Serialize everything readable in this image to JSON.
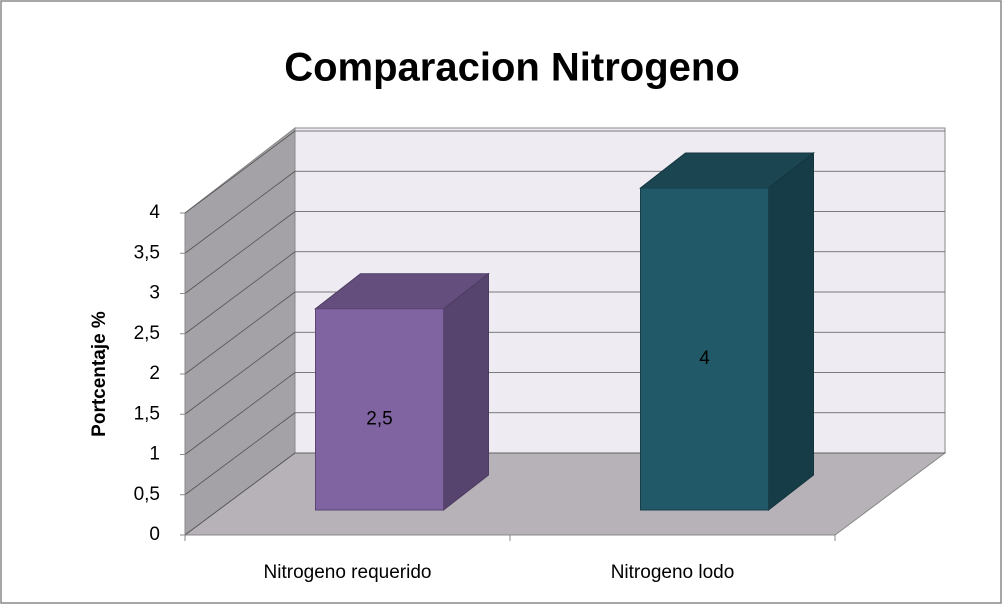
{
  "chart_data": {
    "type": "bar3d",
    "title": "Comparacion Nitrogeno",
    "ylabel": "Portcentaje %",
    "categories": [
      "Nitrogeno requerido",
      "Nitrogeno lodo"
    ],
    "values": [
      2.5,
      4
    ],
    "value_labels": [
      "2,5",
      "4"
    ],
    "colors": [
      "#8064a2",
      "#215968"
    ],
    "ylim": [
      0,
      4
    ],
    "yticks": [
      0,
      {
        "value": 0.5,
        "label": "0,5"
      },
      1,
      {
        "value": 1.5,
        "label": "1,5"
      },
      2,
      {
        "value": 2.5,
        "label": "2,5"
      },
      3,
      {
        "value": 3.5,
        "label": "3,5"
      },
      4
    ],
    "grid": true
  }
}
